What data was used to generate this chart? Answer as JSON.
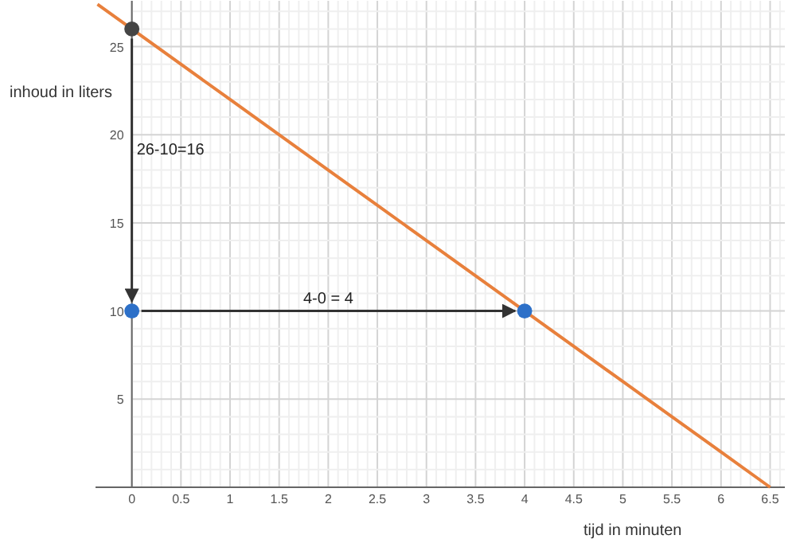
{
  "chart_data": {
    "type": "line",
    "xlabel": "tijd in minuten",
    "ylabel": "inhoud in liters",
    "xlim": [
      -0.37,
      6.65
    ],
    "ylim": [
      0,
      27.6
    ],
    "xticks": [
      0,
      0.5,
      1,
      1.5,
      2,
      2.5,
      3,
      3.5,
      4,
      4.5,
      5,
      5.5,
      6,
      6.5
    ],
    "yticks": [
      5,
      10,
      15,
      20,
      25
    ],
    "grid": true,
    "series": [
      {
        "color": "#e8803c",
        "x": [
          -0.35,
          0,
          1,
          2,
          3,
          4,
          5,
          6,
          6.5
        ],
        "values": [
          27.4,
          26,
          22,
          18,
          14,
          10,
          6,
          2,
          0
        ],
        "marker": "none"
      },
      {
        "type": "scatter",
        "color": "#454545",
        "x": [
          0
        ],
        "values": [
          26
        ],
        "marker": "circle"
      },
      {
        "type": "scatter",
        "color": "#2d70c8",
        "x": [
          0,
          4
        ],
        "values": [
          10,
          10
        ],
        "marker": "circle"
      }
    ],
    "annotations": [
      "26-10=16",
      "4-0 = 4"
    ]
  }
}
